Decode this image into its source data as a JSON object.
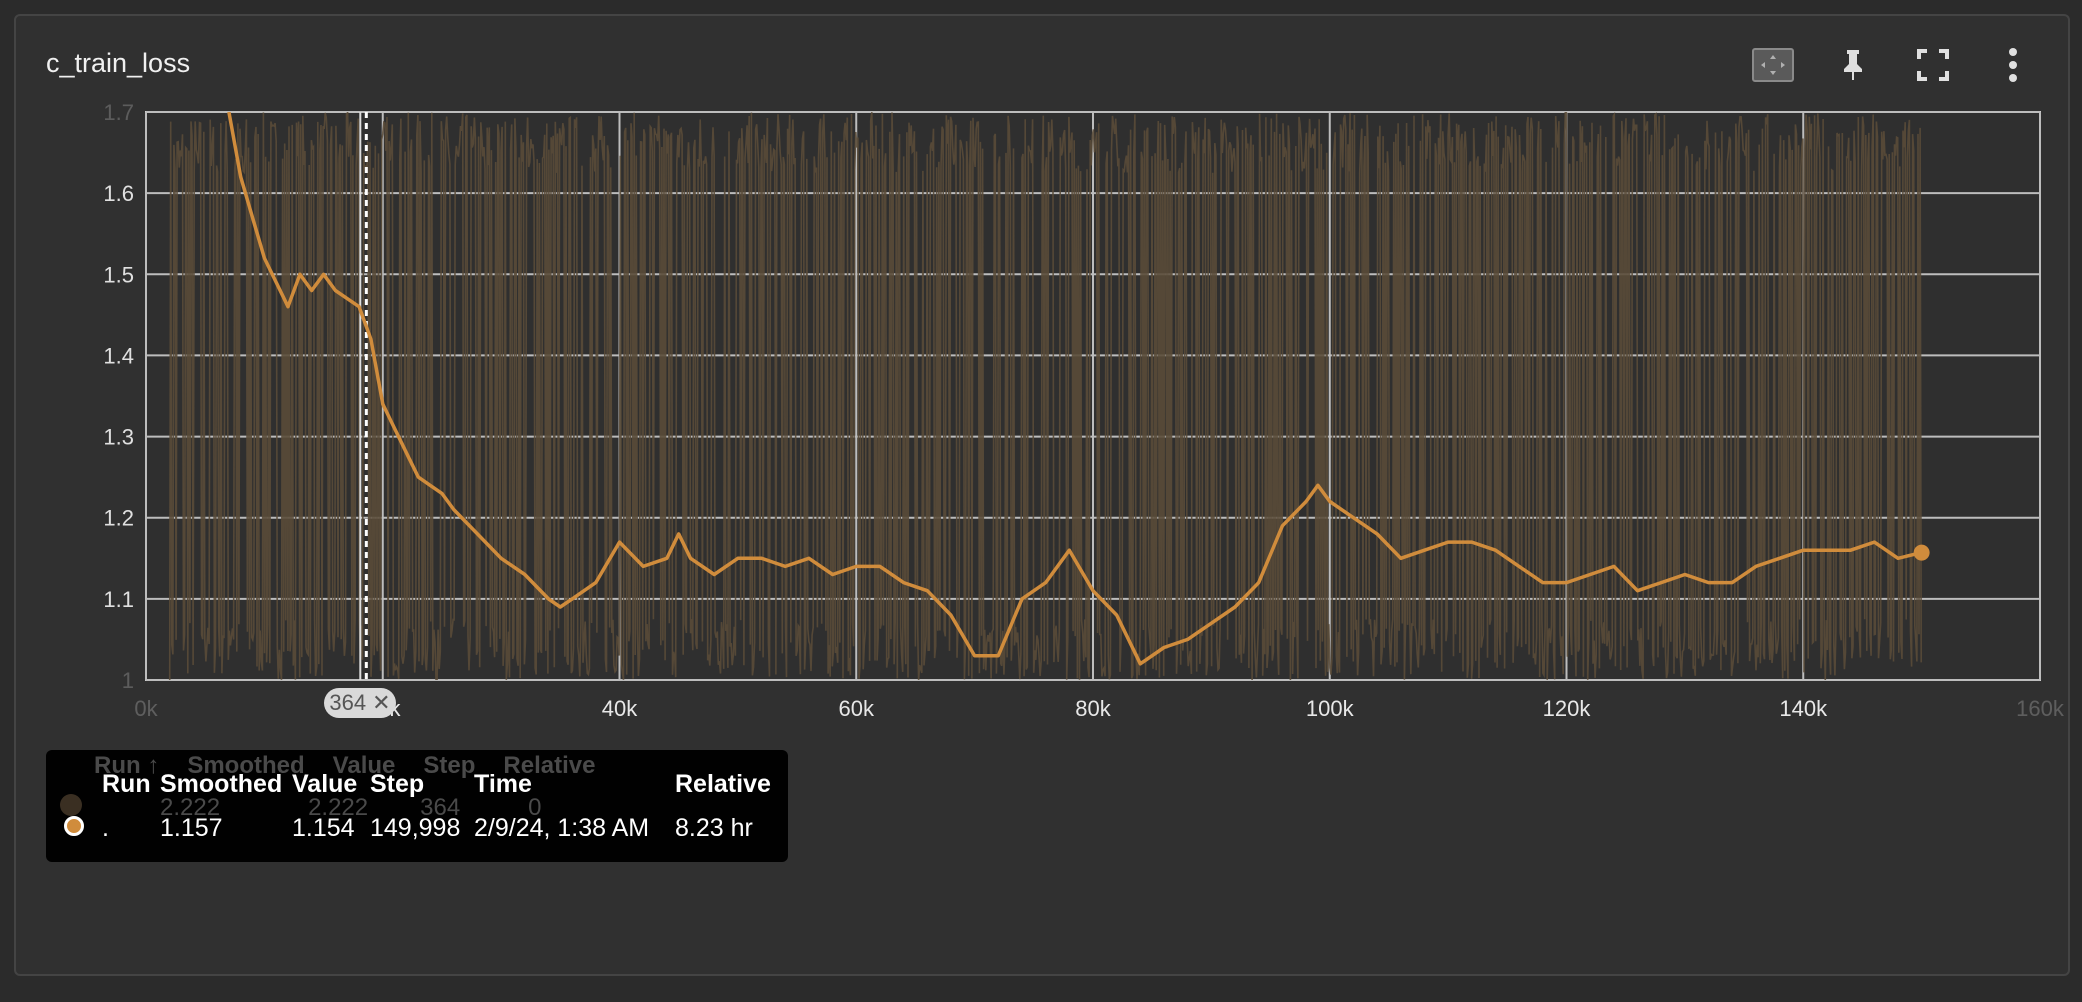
{
  "card": {
    "title": "c_train_loss"
  },
  "toolbar": {
    "icons": [
      "fit-domain-icon",
      "pin-icon",
      "fullscreen-icon",
      "more-vert-icon"
    ]
  },
  "tooltip": {
    "headers": {
      "run": "Run",
      "smoothed": "Smoothed",
      "value": "Value",
      "step": "Step",
      "time": "Time",
      "relative": "Relative"
    },
    "row": {
      "run": ".",
      "smoothed": "1.157",
      "value": "1.154",
      "step": "149,998",
      "time": "2/9/24, 1:38 AM",
      "relative": "8.23 hr"
    },
    "ghost_headers": [
      "Run ↑",
      "Smoothed",
      "Value",
      "Step",
      "Relative"
    ],
    "ghost_row": [
      "2.222",
      "2.222",
      "364",
      "0"
    ]
  },
  "step_marker": {
    "label": "364",
    "close": "✕",
    "step": 364
  },
  "colors": {
    "smoothed_line": "#d08c3c",
    "raw_line": "#5a4b38",
    "grid": "#9a9a9a",
    "plot_bg": "#2f2f2f"
  },
  "chart_data": {
    "type": "line",
    "title": "c_train_loss",
    "xlim": [
      0,
      160000
    ],
    "ylim": [
      1.0,
      1.7
    ],
    "x_ticks": [
      {
        "value": 0,
        "label": "0k"
      },
      {
        "value": 20000,
        "label": "20k"
      },
      {
        "value": 40000,
        "label": "40k"
      },
      {
        "value": 60000,
        "label": "60k"
      },
      {
        "value": 80000,
        "label": "80k"
      },
      {
        "value": 100000,
        "label": "100k"
      },
      {
        "value": 120000,
        "label": "120k"
      },
      {
        "value": 140000,
        "label": "140k"
      },
      {
        "value": 160000,
        "label": "160k"
      }
    ],
    "y_ticks": [
      {
        "value": 1.0,
        "label": "1"
      },
      {
        "value": 1.1,
        "label": "1.1"
      },
      {
        "value": 1.2,
        "label": "1.2"
      },
      {
        "value": 1.3,
        "label": "1.3"
      },
      {
        "value": 1.4,
        "label": "1.4"
      },
      {
        "value": 1.5,
        "label": "1.5"
      },
      {
        "value": 1.6,
        "label": "1.6"
      },
      {
        "value": 1.7,
        "label": "1.7"
      }
    ],
    "grid": true,
    "series": [
      {
        "name": ".",
        "smoothed": {
          "x": [
            7000,
            8000,
            9000,
            10000,
            11000,
            12000,
            13000,
            14000,
            15000,
            16000,
            17000,
            18000,
            19000,
            20000,
            21000,
            22000,
            23000,
            24000,
            25000,
            26000,
            28000,
            30000,
            32000,
            34000,
            35000,
            36000,
            38000,
            40000,
            42000,
            44000,
            45000,
            46000,
            48000,
            50000,
            52000,
            54000,
            56000,
            58000,
            60000,
            62000,
            64000,
            66000,
            68000,
            70000,
            72000,
            74000,
            76000,
            78000,
            80000,
            82000,
            84000,
            86000,
            88000,
            90000,
            92000,
            94000,
            96000,
            98000,
            99000,
            100000,
            102000,
            104000,
            106000,
            108000,
            110000,
            112000,
            114000,
            116000,
            118000,
            120000,
            122000,
            124000,
            126000,
            128000,
            130000,
            132000,
            134000,
            136000,
            138000,
            140000,
            142000,
            144000,
            146000,
            148000,
            150000
          ],
          "y": [
            1.7,
            1.62,
            1.57,
            1.52,
            1.49,
            1.46,
            1.5,
            1.48,
            1.5,
            1.48,
            1.47,
            1.46,
            1.42,
            1.34,
            1.31,
            1.28,
            1.25,
            1.24,
            1.23,
            1.21,
            1.18,
            1.15,
            1.13,
            1.1,
            1.09,
            1.1,
            1.12,
            1.17,
            1.14,
            1.15,
            1.18,
            1.15,
            1.13,
            1.15,
            1.15,
            1.14,
            1.15,
            1.13,
            1.14,
            1.14,
            1.12,
            1.11,
            1.08,
            1.03,
            1.03,
            1.1,
            1.12,
            1.16,
            1.11,
            1.08,
            1.02,
            1.04,
            1.05,
            1.07,
            1.09,
            1.12,
            1.19,
            1.22,
            1.24,
            1.22,
            1.2,
            1.18,
            1.15,
            1.16,
            1.17,
            1.17,
            1.16,
            1.14,
            1.12,
            1.12,
            1.13,
            1.14,
            1.11,
            1.12,
            1.13,
            1.12,
            1.12,
            1.14,
            1.15,
            1.16,
            1.16,
            1.16,
            1.17,
            1.15,
            1.157
          ]
        },
        "raw_range": [
          1.0,
          1.7
        ]
      }
    ]
  }
}
